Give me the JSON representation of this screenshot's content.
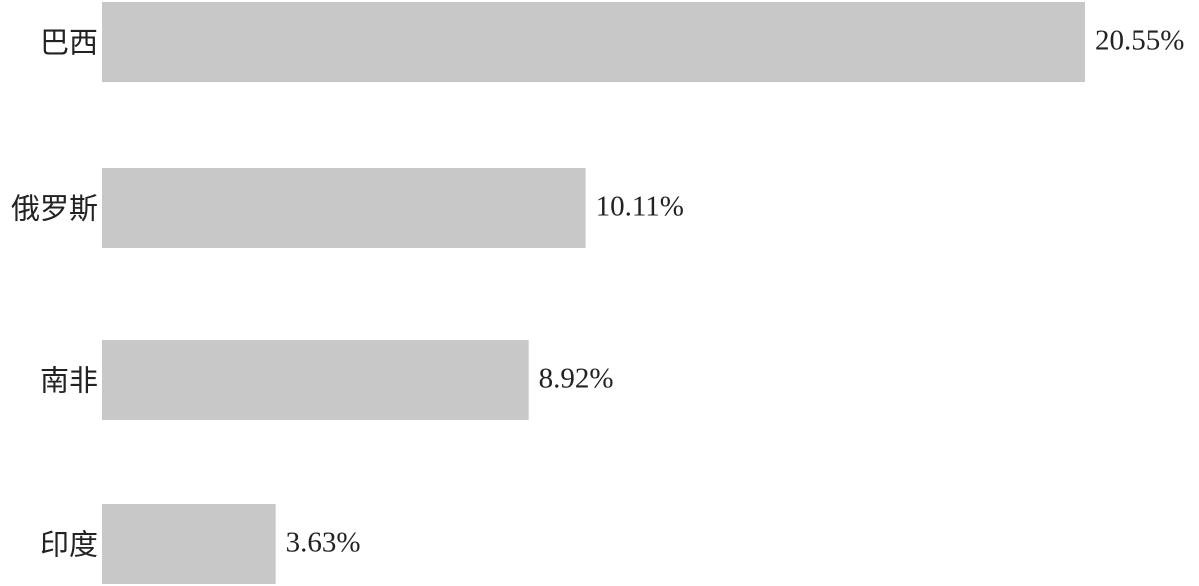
{
  "chart_data": {
    "type": "bar",
    "orientation": "horizontal",
    "categories": [
      "巴西",
      "俄罗斯",
      "南非",
      "印度"
    ],
    "values": [
      20.55,
      10.11,
      8.92,
      3.63
    ],
    "value_labels": [
      "20.55%",
      "10.11%",
      "8.92%",
      "3.63%"
    ],
    "color": "#c8c8c8"
  }
}
